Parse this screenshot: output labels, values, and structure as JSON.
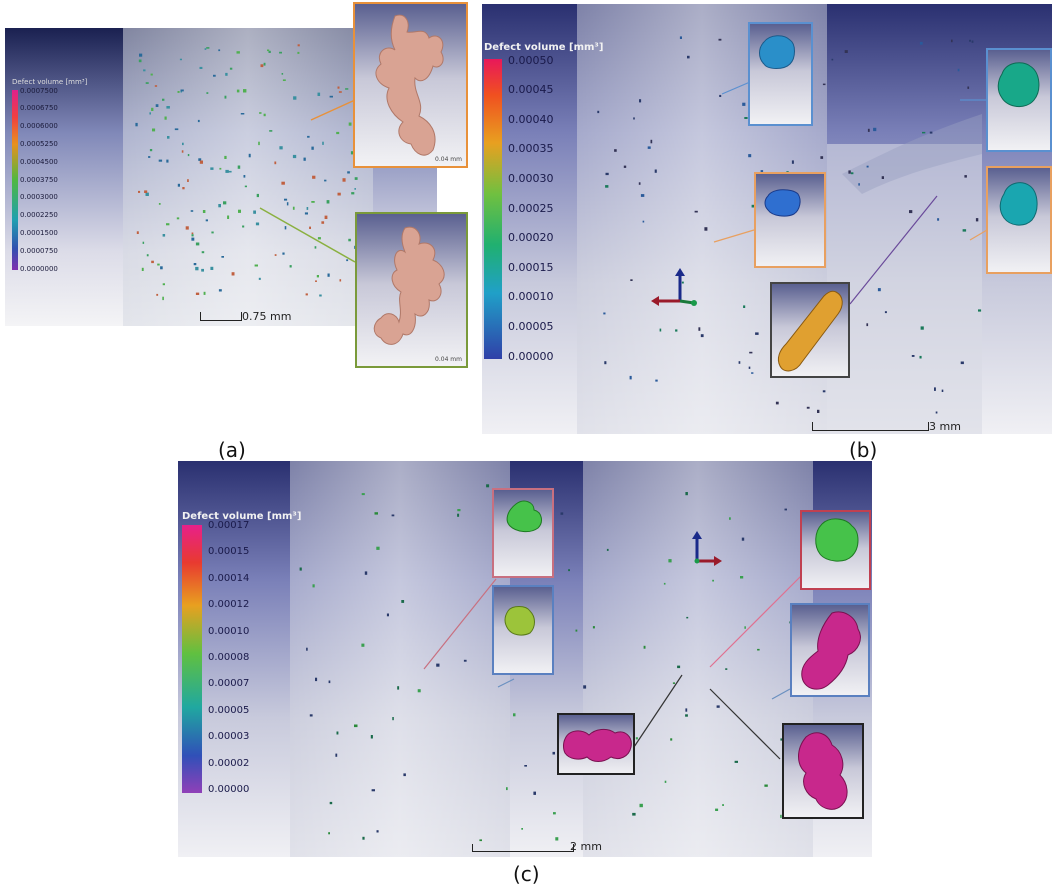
{
  "panels": [
    {
      "caption": "(a)",
      "legend": {
        "title": "Defect volume [mm³]",
        "ticks": [
          "0.0007500",
          "0.0006750",
          "0.0006000",
          "0.0005250",
          "0.0004500",
          "0.0003750",
          "0.0003000",
          "0.0002250",
          "0.0001500",
          "0.0000750",
          "0.0000000"
        ]
      },
      "scale_bar": "0.75 mm",
      "inset_scale": "0.04 mm",
      "colors": {
        "defect_insets": "#d9a393",
        "frame_top": "#e8913a",
        "frame_bottom": "#7a9a3a"
      }
    },
    {
      "caption": "(b)",
      "legend": {
        "title": "Defect volume [mm³]",
        "ticks": [
          "0.00050",
          "0.00045",
          "0.00040",
          "0.00035",
          "0.00030",
          "0.00025",
          "0.00020",
          "0.00015",
          "0.00010",
          "0.00005",
          "0.00000"
        ]
      },
      "scale_bar": "3 mm",
      "colors": {
        "inset_1": "#2a8fc9",
        "inset_2": "#18a889",
        "inset_3": "#2f6fd0",
        "inset_4": "#1aa6b0",
        "inset_5": "#e0a030"
      }
    },
    {
      "caption": "(c)",
      "legend": {
        "title": "Defect volume [mm³]",
        "ticks": [
          "0.00017",
          "0.00015",
          "0.00014",
          "0.00012",
          "0.00010",
          "0.00008",
          "0.00007",
          "0.00005",
          "0.00003",
          "0.00002",
          "0.00000"
        ]
      },
      "scale_bar": "2 mm",
      "colors": {
        "inset_green": "#46c24a",
        "inset_olive": "#9cc43a",
        "inset_magenta": "#c8288c"
      }
    }
  ]
}
